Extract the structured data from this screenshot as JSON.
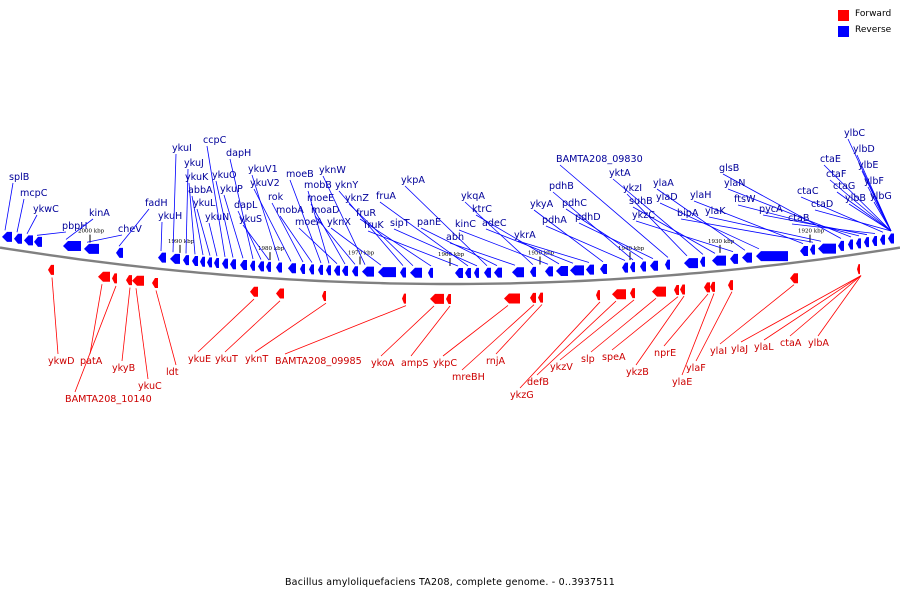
{
  "legend": [
    {
      "label": "Forward",
      "color": "#ff0000"
    },
    {
      "label": "Reverse",
      "color": "#0000ff"
    }
  ],
  "caption": "Bacillus amyloliquefaciens TA208, complete genome. - 0..3937511",
  "colors": {
    "forward": "#ff0000",
    "reverse": "#0000ff",
    "forward_label": "#cc0000",
    "reverse_label": "#000099",
    "backbone": "#808080"
  },
  "ticks": [
    "2000 kbp",
    "1990 kbp",
    "1980 kbp",
    "1970 kbp",
    "1960 kbp",
    "1950 kbp",
    "1940 kbp",
    "1930 kbp",
    "1920 kbp"
  ],
  "reverse_labels": [
    "splB",
    "mcpC",
    "ykwC",
    "pbpH",
    "kinA",
    "cheV",
    "fadH",
    "ykuH",
    "ykuI",
    "ykuJ",
    "ykuK",
    "abbA",
    "ykuL",
    "ykuN",
    "ccpC",
    "ykuO",
    "ykuP",
    "dapH",
    "dapL",
    "ykuS",
    "ykuV1",
    "ykuV2",
    "rok",
    "mobA",
    "moeB",
    "mobB",
    "moeA",
    "moeE",
    "moaD",
    "yknW",
    "yknX",
    "yknY",
    "yknZ",
    "fruR",
    "fruK",
    "fruA",
    "sipT",
    "ykpA",
    "panE",
    "abh",
    "ykqA",
    "kinC",
    "ktrC",
    "adeC",
    "ykrA",
    "ykyA",
    "pdhA",
    "pdhB",
    "pdhC",
    "pdhD",
    "BAMTA208_09830",
    "ykzI",
    "yktA",
    "suhB",
    "ykzC",
    "ylaA",
    "ylaD",
    "ylaH",
    "bipA",
    "ylaK",
    "glsB",
    "ylaN",
    "ftsW",
    "pycA",
    "ctaB",
    "ctaC",
    "ctaD",
    "ctaE",
    "ctaF",
    "ctaG",
    "ylbB",
    "ylbC",
    "ylbD",
    "ylbE",
    "ylbF",
    "ylbG"
  ],
  "forward_labels": [
    "ykwD",
    "patA",
    "BAMTA208_10140",
    "ykyB",
    "ykuC",
    "ldt",
    "ykuE",
    "ykuT",
    "yknT",
    "BAMTA208_09985",
    "ykoA",
    "ampS",
    "ykpC",
    "mreBH",
    "rnjA",
    "ykzG",
    "defB",
    "ykzV",
    "slp",
    "speA",
    "ykzB",
    "nprE",
    "ylaE",
    "ylaF",
    "ylaI",
    "ylaJ",
    "ylaL",
    "ctaA",
    "ylbA"
  ]
}
